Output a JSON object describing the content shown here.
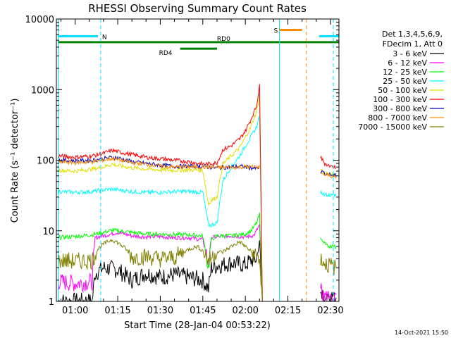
{
  "chart_data": {
    "type": "line",
    "title": "RHESSI Observing Summary Count Rates",
    "xlabel": "Start Time (28-Jan-04 00:53:22)",
    "ylabel": "Count Rate (s⁻¹ detector⁻¹)",
    "yscale": "log",
    "ylim": [
      1,
      10000
    ],
    "xlim_minutes": [
      53.37,
      153.0
    ],
    "x_ticks": [
      {
        "label": "01:00",
        "minute": 60
      },
      {
        "label": "01:15",
        "minute": 75
      },
      {
        "label": "01:30",
        "minute": 90
      },
      {
        "label": "01:45",
        "minute": 105
      },
      {
        "label": "02:00",
        "minute": 120
      },
      {
        "label": "02:15",
        "minute": 135
      },
      {
        "label": "02:30",
        "minute": 150
      }
    ],
    "y_ticks": [
      {
        "label": "1",
        "value": 1
      },
      {
        "label": "10",
        "value": 10
      },
      {
        "label": "100",
        "value": 100
      },
      {
        "label": "1000",
        "value": 1000
      },
      {
        "label": "10000",
        "value": 10000
      }
    ],
    "legend_title": [
      "Det 1,3,4,5,6,9,",
      "FDecim 1, Att 0"
    ],
    "legend_placement": "right",
    "series": [
      {
        "name": "3 - 6 keV",
        "color": "#000000",
        "x": [
          54,
          60,
          66,
          67,
          70,
          75,
          80,
          85,
          90,
          95,
          100,
          105,
          107,
          108,
          110,
          115,
          120,
          122,
          124,
          125,
          126
        ],
        "y": [
          1.0,
          1.0,
          1.0,
          2.5,
          3.0,
          2.8,
          2.0,
          2.5,
          2.2,
          2.4,
          2.2,
          2.0,
          1.5,
          3.0,
          3.2,
          3.5,
          3.3,
          3.8,
          4.0,
          7.0,
          1.0
        ]
      },
      {
        "name": "6 - 12 keV",
        "color": "#ff00ff",
        "x": [
          54,
          60,
          66,
          67,
          70,
          75,
          80,
          85,
          90,
          95,
          100,
          105,
          107,
          108,
          110,
          115,
          120,
          123,
          125,
          126
        ],
        "y": [
          1.9,
          1.8,
          1.9,
          8.0,
          8.5,
          9.5,
          8.5,
          8.2,
          8.3,
          8.0,
          8.0,
          7.5,
          3.5,
          8.0,
          8.2,
          8.5,
          8.2,
          8.6,
          12.0,
          1.0
        ]
      },
      {
        "name": "12 - 25 keV",
        "color": "#00ff00",
        "x": [
          54,
          60,
          66,
          70,
          73,
          75,
          80,
          85,
          90,
          95,
          100,
          105,
          107,
          108,
          110,
          115,
          120,
          122,
          124,
          125,
          126
        ],
        "y": [
          8.0,
          8.3,
          8.8,
          9.5,
          10.2,
          10.0,
          9.5,
          9.0,
          9.0,
          8.8,
          8.8,
          8.5,
          3.0,
          7.5,
          8.5,
          8.5,
          9.0,
          10.0,
          13.0,
          17.0,
          1.0
        ]
      },
      {
        "name": "25 - 50 keV",
        "color": "#00ffff",
        "x": [
          54,
          60,
          66,
          70,
          73,
          75,
          80,
          85,
          90,
          95,
          100,
          105,
          107,
          108,
          110,
          112,
          115,
          118,
          120,
          122,
          124,
          125,
          126
        ],
        "y": [
          36,
          35,
          36,
          38,
          39,
          38,
          36,
          35,
          35,
          36,
          36,
          35,
          12,
          12,
          13,
          50,
          80,
          115,
          160,
          215,
          300,
          440,
          1.0
        ]
      },
      {
        "name": "50 - 100 keV",
        "color": "#e0e000",
        "x": [
          54,
          60,
          66,
          70,
          73,
          75,
          80,
          85,
          90,
          95,
          100,
          105,
          107,
          108,
          110,
          112,
          115,
          118,
          120,
          122,
          124,
          125,
          126
        ],
        "y": [
          72,
          70,
          75,
          80,
          88,
          84,
          78,
          75,
          73,
          72,
          73,
          72,
          24,
          27,
          30,
          88,
          115,
          150,
          210,
          300,
          500,
          800,
          1.0
        ]
      },
      {
        "name": "100 - 300 keV",
        "color": "#ff0000",
        "x": [
          54,
          60,
          66,
          70,
          73,
          75,
          80,
          85,
          90,
          95,
          100,
          105,
          107,
          108,
          110,
          112,
          115,
          118,
          120,
          122,
          124,
          125,
          126
        ],
        "y": [
          115,
          110,
          115,
          125,
          138,
          132,
          120,
          110,
          105,
          100,
          95,
          88,
          88,
          90,
          92,
          140,
          160,
          200,
          260,
          380,
          600,
          1200,
          1.0
        ]
      },
      {
        "name": "300 - 800 keV",
        "color": "#0000c0",
        "x": [
          54,
          60,
          66,
          70,
          73,
          75,
          80,
          85,
          90,
          95,
          100,
          105,
          107,
          110,
          115,
          118,
          120,
          122,
          124,
          125
        ],
        "y": [
          100,
          98,
          100,
          105,
          110,
          108,
          95,
          90,
          85,
          82,
          82,
          82,
          80,
          78,
          80,
          82,
          80,
          78,
          76,
          80
        ]
      },
      {
        "name": "800 - 7000 keV",
        "color": "#ff8c00",
        "x": [
          54,
          60,
          66,
          70,
          73,
          75,
          80,
          85,
          90,
          95,
          100,
          105,
          107,
          110,
          115,
          118,
          120,
          122,
          124,
          125
        ],
        "y": [
          95,
          92,
          95,
          100,
          106,
          102,
          92,
          88,
          82,
          80,
          80,
          80,
          80,
          79,
          79,
          80,
          81,
          80,
          80,
          80
        ]
      },
      {
        "name": "7000 - 15000 keV",
        "color": "#808000",
        "x": [
          54,
          60,
          66,
          68,
          70,
          73,
          75,
          78,
          80,
          85,
          90,
          95,
          100,
          103,
          105,
          107,
          108,
          110,
          112,
          115,
          118,
          120,
          124,
          125,
          126
        ],
        "y": [
          3.8,
          3.7,
          3.8,
          5.5,
          6.5,
          7.5,
          6.8,
          5.5,
          4.2,
          4.3,
          4.0,
          4.2,
          5.5,
          6.0,
          5.2,
          3.8,
          4.2,
          5.0,
          5.0,
          6.0,
          7.0,
          6.0,
          4.3,
          4.0,
          1.0
        ]
      }
    ],
    "series_after_gap": [
      {
        "color": "#000000",
        "x": [
          146.5,
          147,
          150,
          152
        ],
        "y": [
          1.0,
          1.2,
          1.1,
          1.0
        ]
      },
      {
        "color": "#ff00ff",
        "x": [
          146.5,
          147,
          150,
          152
        ],
        "y": [
          1.8,
          1.2,
          1.0,
          1.0
        ]
      },
      {
        "color": "#00ff00",
        "x": [
          146.5,
          148,
          150,
          152
        ],
        "y": [
          7.5,
          6.5,
          6.0,
          6.0
        ]
      },
      {
        "color": "#00ffff",
        "x": [
          146.5,
          148,
          150,
          152
        ],
        "y": [
          35,
          33,
          32,
          32
        ]
      },
      {
        "color": "#e0e000",
        "x": [
          146.5,
          148,
          150,
          152
        ],
        "y": [
          75,
          65,
          62,
          62
        ]
      },
      {
        "color": "#ff0000",
        "x": [
          146.5,
          148,
          150,
          152
        ],
        "y": [
          110,
          90,
          82,
          80
        ]
      },
      {
        "color": "#0000c0",
        "x": [
          146.5,
          148,
          150,
          152
        ],
        "y": [
          70,
          65,
          62,
          60
        ]
      },
      {
        "color": "#ff8c00",
        "x": [
          146.5,
          148,
          150,
          152
        ],
        "y": [
          68,
          62,
          60,
          58
        ]
      },
      {
        "color": "#808000",
        "x": [
          146.5,
          148,
          150,
          152
        ],
        "y": [
          4.0,
          3.5,
          3.2,
          3.0
        ]
      }
    ],
    "annotations": [
      {
        "label": "N",
        "color": "#00e0ff",
        "x_start": 54,
        "x_end": 68,
        "y": 5700
      },
      {
        "label": "",
        "color": "#00e0ff",
        "x_start": 146,
        "x_end": 153,
        "y": 5700
      },
      {
        "label": "S",
        "color": "#ff8c00",
        "x_start": 132,
        "x_end": 140,
        "y": 7000
      },
      {
        "label": "RD0",
        "color": "#008000",
        "x_start": 54,
        "x_end": 153,
        "y": 4700
      },
      {
        "label": "RD4",
        "color": "#008000",
        "x_start": 97,
        "x_end": 110,
        "y": 3800
      }
    ],
    "vertical_markers": [
      {
        "x": 54.0,
        "color": "#00e0ff",
        "style": "solid"
      },
      {
        "x": 69.0,
        "color": "#00e0ff",
        "style": "dashed"
      },
      {
        "x": 132.0,
        "color": "#00e0ff",
        "style": "solid"
      },
      {
        "x": 141.5,
        "color": "#ff8c00",
        "style": "dashed"
      },
      {
        "x": 151.0,
        "color": "#00e0ff",
        "style": "dashed"
      }
    ],
    "timestamp": "14-Oct-2021 15:50"
  }
}
